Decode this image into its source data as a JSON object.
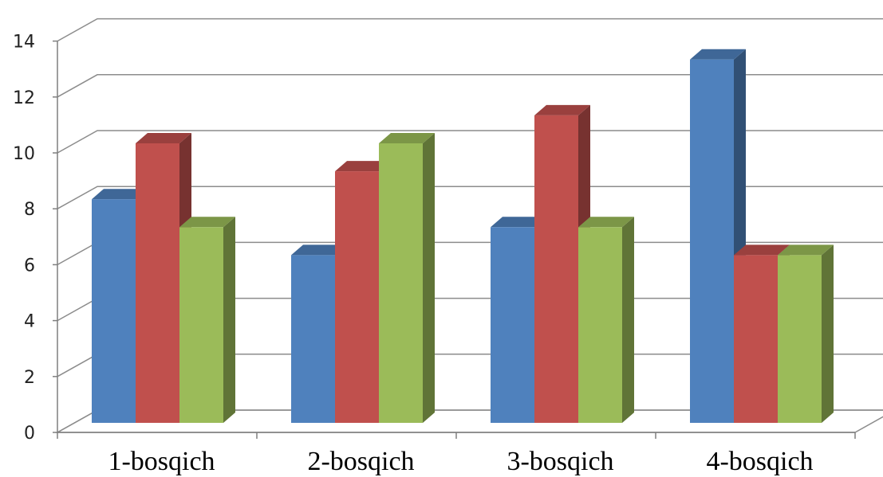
{
  "chart_data": {
    "type": "bar",
    "title": "",
    "xlabel": "",
    "ylabel": "",
    "categories": [
      "1-bosqich",
      "2-bosqich",
      "3-bosqich",
      "4-bosqich"
    ],
    "series": [
      {
        "values": [
          8,
          6,
          7,
          13
        ],
        "color": "#4f81bd"
      },
      {
        "values": [
          10,
          9,
          11,
          6
        ],
        "color": "#c0504d"
      },
      {
        "values": [
          7,
          10,
          7,
          6
        ],
        "color": "#9bbb59"
      }
    ],
    "ylim": [
      0,
      14
    ],
    "yticks": [
      0,
      2,
      4,
      6,
      8,
      10,
      12,
      14
    ],
    "grid": true,
    "legend": "none",
    "style": "3d-clustered-column"
  }
}
